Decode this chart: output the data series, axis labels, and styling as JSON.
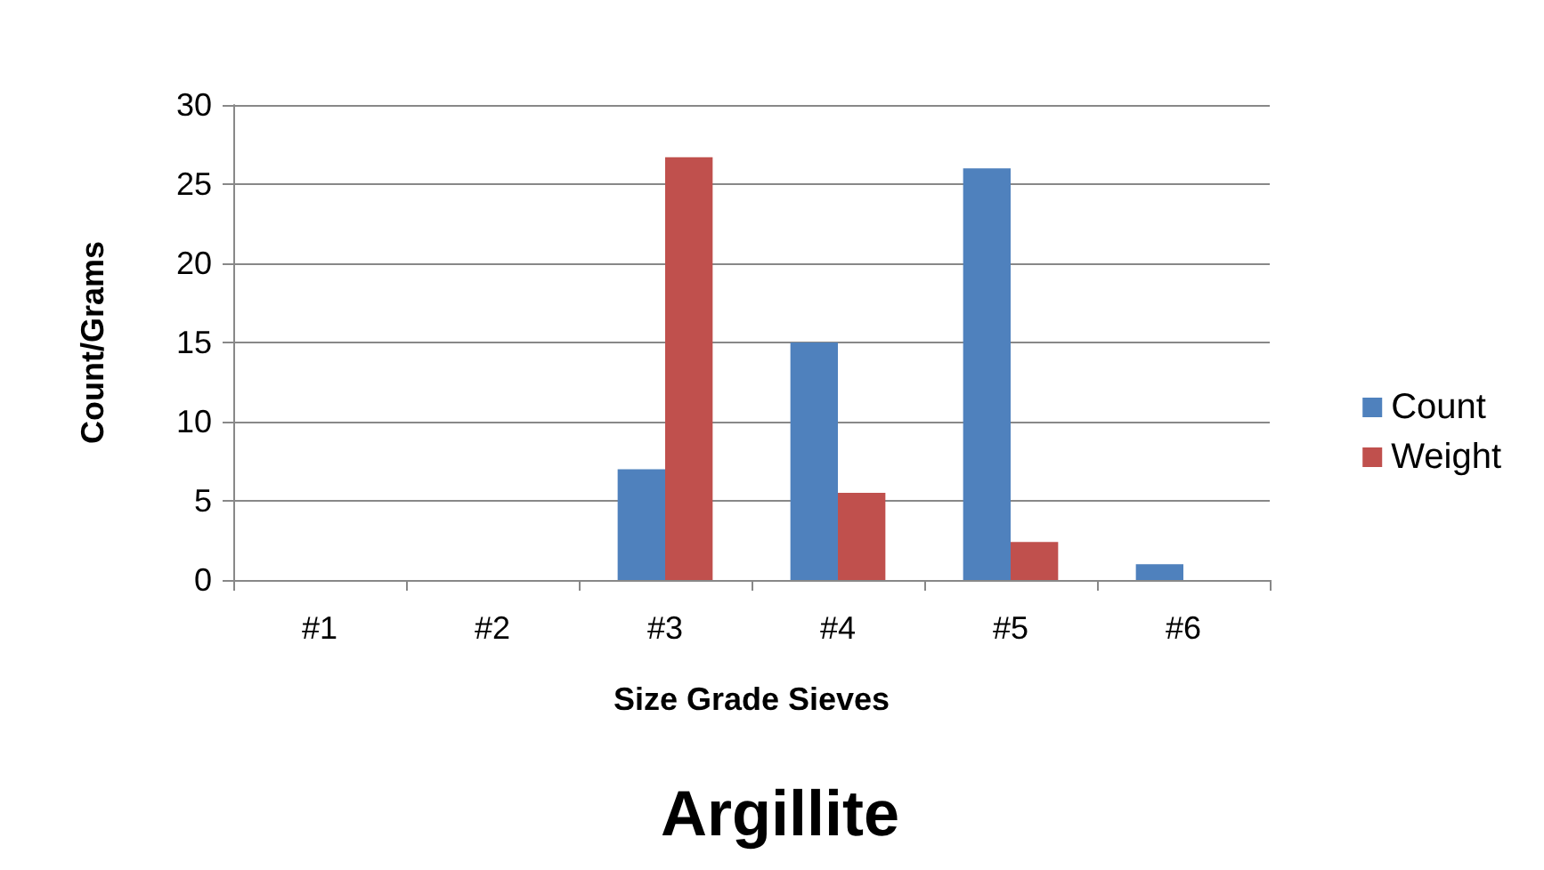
{
  "chart_data": {
    "type": "bar",
    "title": "Argillite",
    "xlabel": "Size Grade Sieves",
    "ylabel": "Count/Grams",
    "categories": [
      "#1",
      "#2",
      "#3",
      "#4",
      "#5",
      "#6"
    ],
    "series": [
      {
        "name": "Count",
        "color": "#4f81bd",
        "values": [
          0,
          0,
          7,
          15,
          26,
          1
        ]
      },
      {
        "name": "Weight",
        "color": "#c0504d",
        "values": [
          0,
          0,
          26.7,
          5.5,
          2.4,
          0
        ]
      }
    ],
    "ylim": [
      0,
      30
    ],
    "yticks": [
      0,
      5,
      10,
      15,
      20,
      25,
      30
    ],
    "grid": "y",
    "legend": "right"
  }
}
